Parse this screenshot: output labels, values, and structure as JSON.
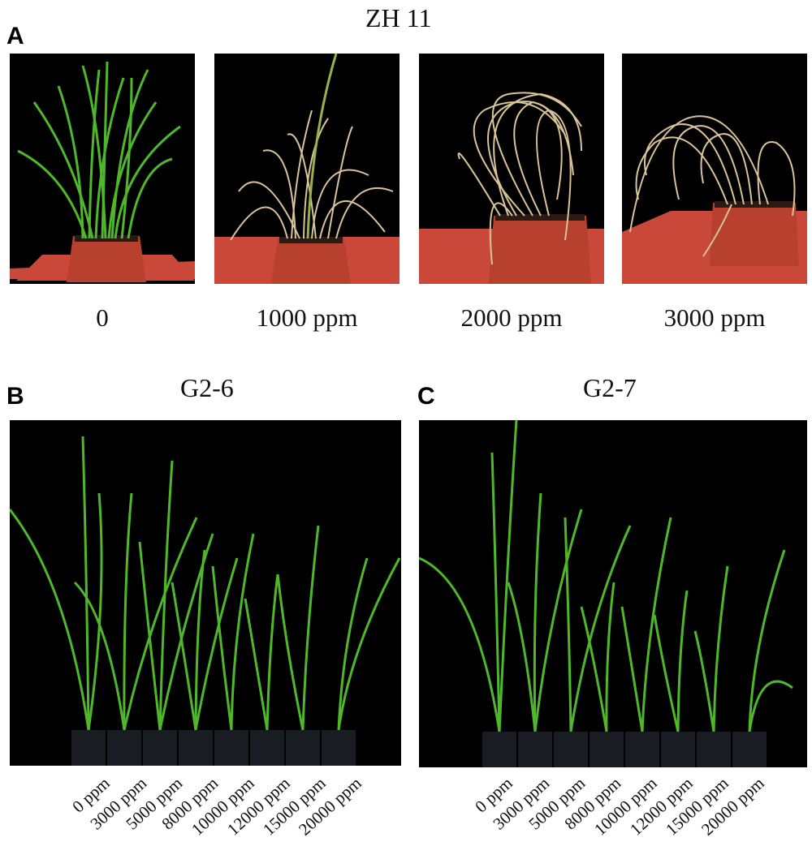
{
  "panel_a": {
    "letter": "A",
    "title": "ZH 11",
    "concentrations": [
      "0",
      "1000 ppm",
      "2000 ppm",
      "3000 ppm"
    ]
  },
  "panel_b": {
    "letter": "B",
    "title": "G2-6",
    "doses": [
      "0 ppm",
      "3000 ppm",
      "5000 ppm",
      "8000 ppm",
      "10000 ppm",
      "12000 ppm",
      "15000 ppm",
      "20000 ppm"
    ]
  },
  "panel_c": {
    "letter": "C",
    "title": "G2-7",
    "doses": [
      "0 ppm",
      "3000 ppm",
      "5000 ppm",
      "8000 ppm",
      "10000 ppm",
      "12000 ppm",
      "15000 ppm",
      "20000 ppm"
    ]
  },
  "colors": {
    "background": "#000000",
    "healthy_leaf": "#4fb82a",
    "dead_leaf": "#d9c49a",
    "tray": "#c9483a",
    "pot": "#b8402f",
    "black_pot": "#1a1c24"
  }
}
